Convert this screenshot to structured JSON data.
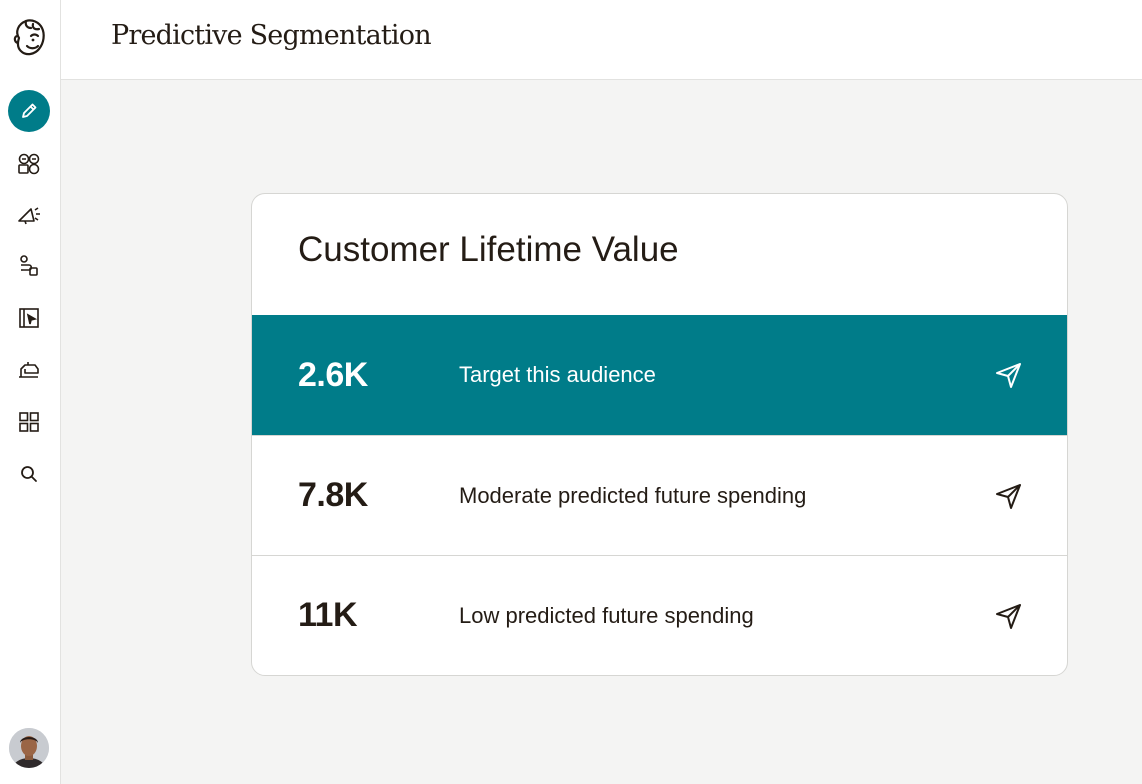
{
  "header": {
    "title": "Predictive Segmentation"
  },
  "sidebar": {
    "logo": "mailchimp-freddie-logo",
    "items": [
      {
        "icon": "pencil-icon",
        "active": true
      },
      {
        "icon": "audience-icon",
        "active": false
      },
      {
        "icon": "megaphone-icon",
        "active": false
      },
      {
        "icon": "automation-icon",
        "active": false
      },
      {
        "icon": "website-icon",
        "active": false
      },
      {
        "icon": "content-icon",
        "active": false
      },
      {
        "icon": "integrations-icon",
        "active": false
      },
      {
        "icon": "search-icon",
        "active": false
      }
    ],
    "avatar": "user-avatar"
  },
  "card": {
    "title": "Customer Lifetime Value",
    "segments": [
      {
        "count": "2.6K",
        "label": "Target this audience",
        "highlighted": true,
        "action_icon": "send-icon"
      },
      {
        "count": "7.8K",
        "label": "Moderate predicted future spending",
        "highlighted": false,
        "action_icon": "send-icon"
      },
      {
        "count": "11K",
        "label": "Low predicted future spending",
        "highlighted": false,
        "action_icon": "send-icon"
      }
    ]
  },
  "colors": {
    "accent": "#007c89",
    "text": "#241c15",
    "background": "#f4f4f3",
    "surface": "#ffffff",
    "border": "#d6d6d3"
  }
}
